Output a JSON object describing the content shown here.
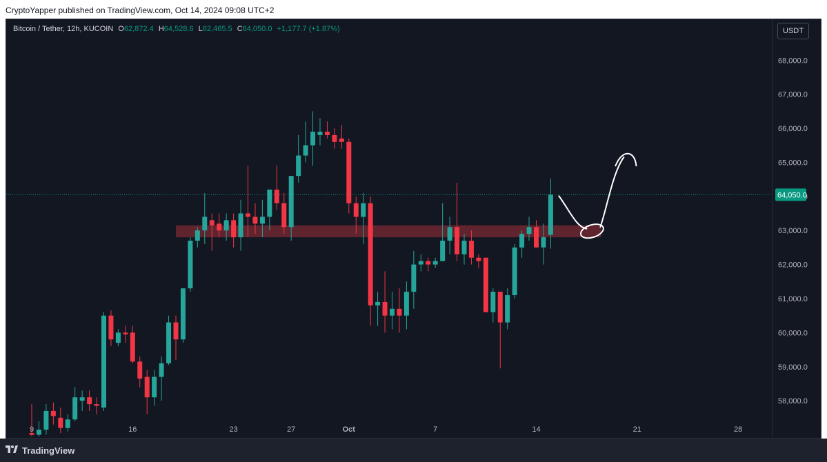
{
  "header": {
    "text": "CryptoYapper published on TradingView.com, Oct 14, 2024 09:08 UTC+2"
  },
  "legend": {
    "symbol": "Bitcoin / Tether, 12h, KUCOIN",
    "open_label": "O",
    "open": "62,872.4",
    "high_label": "H",
    "high": "64,528.6",
    "low_label": "L",
    "low": "62,465.5",
    "close_label": "C",
    "close": "64,050.0",
    "change": "+1,177.7 (+1.87%)"
  },
  "currency": "USDT",
  "footer": {
    "brand": "TradingView"
  },
  "colors": {
    "up": "#26a69a",
    "down": "#f23645",
    "background": "#131722",
    "zone": "#7a2a33",
    "price_tag": "#089981",
    "grid_text": "#b2b5be"
  },
  "chart_data": {
    "type": "candlestick",
    "ylim": [
      56950,
      69200
    ],
    "y_ticks": [
      "58,000.0",
      "59,000.0",
      "60,000.0",
      "61,000.0",
      "62,000.0",
      "63,000.0",
      "64,000.0",
      "65,000.0",
      "66,000.0",
      "67,000.0",
      "68,000.0"
    ],
    "y_tick_values": [
      58000,
      59000,
      60000,
      61000,
      62000,
      63000,
      64000,
      65000,
      66000,
      67000,
      68000
    ],
    "x_ticks": [
      "9",
      "16",
      "23",
      "27",
      "Oct",
      "7",
      "14",
      "21",
      "28"
    ],
    "x_tick_index": [
      0,
      14,
      28,
      36,
      44,
      56,
      70,
      84,
      98
    ],
    "last_price": 64050.0,
    "last_price_label": "64,050.0",
    "support_zone": {
      "from": 62800,
      "to": 63150,
      "start_index": 20,
      "end_index": 79
    },
    "candles": [
      {
        "o": 57050,
        "h": 57900,
        "l": 56950,
        "c": 57000
      },
      {
        "o": 57000,
        "h": 57400,
        "l": 56950,
        "c": 57150
      },
      {
        "o": 57150,
        "h": 57900,
        "l": 57000,
        "c": 57700
      },
      {
        "o": 57700,
        "h": 57950,
        "l": 57300,
        "c": 57550
      },
      {
        "o": 57500,
        "h": 57800,
        "l": 57050,
        "c": 57200
      },
      {
        "o": 57200,
        "h": 57600,
        "l": 57100,
        "c": 57450
      },
      {
        "o": 57450,
        "h": 58400,
        "l": 57400,
        "c": 58100
      },
      {
        "o": 58000,
        "h": 58300,
        "l": 57700,
        "c": 58100
      },
      {
        "o": 58100,
        "h": 58300,
        "l": 57700,
        "c": 57900
      },
      {
        "o": 57900,
        "h": 58100,
        "l": 57600,
        "c": 57850
      },
      {
        "o": 57800,
        "h": 60600,
        "l": 57700,
        "c": 60500
      },
      {
        "o": 60500,
        "h": 60650,
        "l": 59600,
        "c": 59800
      },
      {
        "o": 59700,
        "h": 60100,
        "l": 59600,
        "c": 60000
      },
      {
        "o": 60000,
        "h": 60200,
        "l": 59700,
        "c": 59950
      },
      {
        "o": 60000,
        "h": 60200,
        "l": 59100,
        "c": 59150
      },
      {
        "o": 59150,
        "h": 59300,
        "l": 58400,
        "c": 58650
      },
      {
        "o": 58700,
        "h": 58900,
        "l": 57600,
        "c": 58100
      },
      {
        "o": 58100,
        "h": 58900,
        "l": 57850,
        "c": 58700
      },
      {
        "o": 58700,
        "h": 59300,
        "l": 58000,
        "c": 59100
      },
      {
        "o": 59100,
        "h": 60500,
        "l": 59050,
        "c": 60300
      },
      {
        "o": 60300,
        "h": 60500,
        "l": 59200,
        "c": 59800
      },
      {
        "o": 59800,
        "h": 61300,
        "l": 59700,
        "c": 61300
      },
      {
        "o": 61300,
        "h": 62800,
        "l": 61200,
        "c": 62700
      },
      {
        "o": 62700,
        "h": 63100,
        "l": 62500,
        "c": 63000
      },
      {
        "o": 63000,
        "h": 64100,
        "l": 62600,
        "c": 63400
      },
      {
        "o": 63300,
        "h": 63500,
        "l": 62400,
        "c": 63150
      },
      {
        "o": 63200,
        "h": 63500,
        "l": 62800,
        "c": 63000
      },
      {
        "o": 63000,
        "h": 63500,
        "l": 62700,
        "c": 63300
      },
      {
        "o": 63300,
        "h": 63500,
        "l": 62500,
        "c": 62800
      },
      {
        "o": 62800,
        "h": 63900,
        "l": 62400,
        "c": 63500
      },
      {
        "o": 63500,
        "h": 64900,
        "l": 62800,
        "c": 63400
      },
      {
        "o": 63400,
        "h": 63800,
        "l": 62900,
        "c": 63200
      },
      {
        "o": 63200,
        "h": 63900,
        "l": 62800,
        "c": 63400
      },
      {
        "o": 63400,
        "h": 64200,
        "l": 63000,
        "c": 64200
      },
      {
        "o": 64200,
        "h": 64900,
        "l": 63600,
        "c": 63800
      },
      {
        "o": 63800,
        "h": 64100,
        "l": 62900,
        "c": 63100
      },
      {
        "o": 63100,
        "h": 64600,
        "l": 62700,
        "c": 64600
      },
      {
        "o": 64600,
        "h": 65800,
        "l": 64400,
        "c": 65200
      },
      {
        "o": 65200,
        "h": 66200,
        "l": 65000,
        "c": 65500
      },
      {
        "o": 65500,
        "h": 66500,
        "l": 64900,
        "c": 65900
      },
      {
        "o": 65800,
        "h": 66300,
        "l": 65500,
        "c": 65900
      },
      {
        "o": 65900,
        "h": 66200,
        "l": 65700,
        "c": 65800
      },
      {
        "o": 65800,
        "h": 66000,
        "l": 65400,
        "c": 65600
      },
      {
        "o": 65700,
        "h": 66100,
        "l": 65400,
        "c": 65600
      },
      {
        "o": 65600,
        "h": 65700,
        "l": 63500,
        "c": 63800
      },
      {
        "o": 63800,
        "h": 64000,
        "l": 62900,
        "c": 63400
      },
      {
        "o": 63400,
        "h": 64100,
        "l": 62600,
        "c": 63800
      },
      {
        "o": 63800,
        "h": 64000,
        "l": 60200,
        "c": 60800
      },
      {
        "o": 60800,
        "h": 61200,
        "l": 60200,
        "c": 60900
      },
      {
        "o": 60900,
        "h": 61800,
        "l": 60000,
        "c": 60500
      },
      {
        "o": 60500,
        "h": 61200,
        "l": 60100,
        "c": 60700
      },
      {
        "o": 60700,
        "h": 61300,
        "l": 60000,
        "c": 60500
      },
      {
        "o": 60500,
        "h": 61500,
        "l": 60100,
        "c": 61200
      },
      {
        "o": 61200,
        "h": 62400,
        "l": 60700,
        "c": 62000
      },
      {
        "o": 62000,
        "h": 62300,
        "l": 61800,
        "c": 62100
      },
      {
        "o": 62100,
        "h": 62200,
        "l": 61800,
        "c": 62000
      },
      {
        "o": 62000,
        "h": 62200,
        "l": 61900,
        "c": 62100
      },
      {
        "o": 62100,
        "h": 63800,
        "l": 62100,
        "c": 62700
      },
      {
        "o": 62700,
        "h": 63400,
        "l": 62300,
        "c": 63100
      },
      {
        "o": 63100,
        "h": 64400,
        "l": 62100,
        "c": 62300
      },
      {
        "o": 62300,
        "h": 62900,
        "l": 62000,
        "c": 62700
      },
      {
        "o": 62700,
        "h": 63000,
        "l": 62000,
        "c": 62200
      },
      {
        "o": 62200,
        "h": 62300,
        "l": 61900,
        "c": 62100
      },
      {
        "o": 62200,
        "h": 62200,
        "l": 60600,
        "c": 60600
      },
      {
        "o": 60600,
        "h": 61300,
        "l": 60300,
        "c": 61200
      },
      {
        "o": 61200,
        "h": 61200,
        "l": 58950,
        "c": 60300
      },
      {
        "o": 60300,
        "h": 61300,
        "l": 60100,
        "c": 61100
      },
      {
        "o": 61100,
        "h": 62600,
        "l": 61000,
        "c": 62500
      },
      {
        "o": 62500,
        "h": 63000,
        "l": 62200,
        "c": 62900
      },
      {
        "o": 62900,
        "h": 63400,
        "l": 62700,
        "c": 63100
      },
      {
        "o": 63100,
        "h": 63300,
        "l": 62500,
        "c": 62500
      },
      {
        "o": 62500,
        "h": 63200,
        "l": 62000,
        "c": 62800
      },
      {
        "o": 62872.4,
        "h": 64528.6,
        "l": 62465.5,
        "c": 64050.0
      }
    ]
  }
}
